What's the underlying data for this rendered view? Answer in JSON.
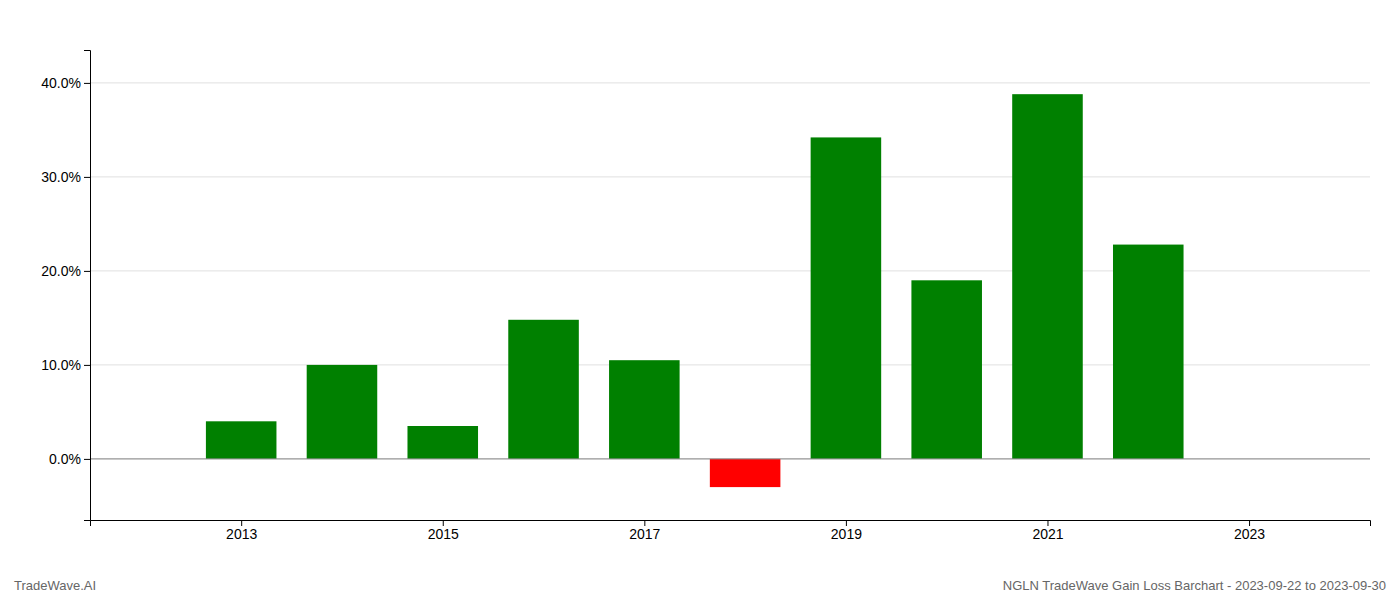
{
  "chart_data": {
    "type": "bar",
    "x": [
      2013,
      2014,
      2015,
      2016,
      2017,
      2018,
      2019,
      2020,
      2021,
      2022
    ],
    "values": [
      0.04,
      0.1,
      0.035,
      0.148,
      0.105,
      -0.03,
      0.342,
      0.19,
      0.388,
      0.228
    ],
    "colors": [
      "#008000",
      "#008000",
      "#008000",
      "#008000",
      "#008000",
      "#ff0000",
      "#008000",
      "#008000",
      "#008000",
      "#008000"
    ],
    "xlim": [
      2011.5,
      2024.2
    ],
    "xticks": [
      2013,
      2015,
      2017,
      2019,
      2021,
      2023
    ],
    "ylim": [
      -0.065,
      0.435
    ],
    "yticks": [
      {
        "value": 0.0,
        "label": "0.0%"
      },
      {
        "value": 0.1,
        "label": "10.0%"
      },
      {
        "value": 0.2,
        "label": "20.0%"
      },
      {
        "value": 0.3,
        "label": "30.0%"
      },
      {
        "value": 0.4,
        "label": "40.0%"
      }
    ],
    "grid": true,
    "annotations": [
      "TradeWave.AI",
      "NGLN TradeWave Gain Loss Barchart - 2023-09-22 to 2023-09-30"
    ]
  }
}
